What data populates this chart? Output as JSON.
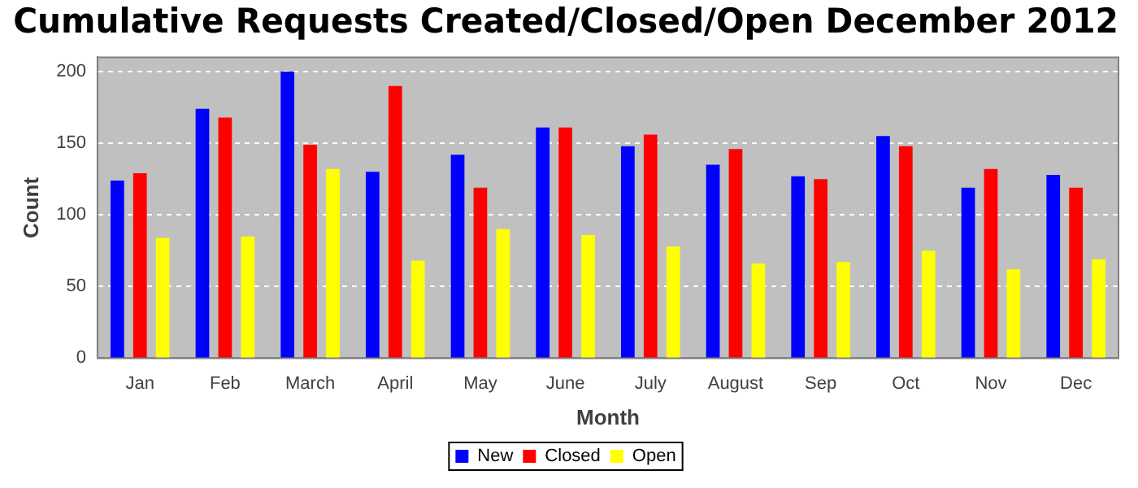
{
  "chart_data": {
    "type": "bar",
    "title": "Cumulative Requests Created/Closed/Open December 2012",
    "xlabel": "Month",
    "ylabel": "Count",
    "categories": [
      "Jan",
      "Feb",
      "March",
      "April",
      "May",
      "June",
      "July",
      "August",
      "Sep",
      "Oct",
      "Nov",
      "Dec"
    ],
    "series": [
      {
        "name": "New",
        "color": "#0000ff",
        "values": [
          124,
          174,
          200,
          130,
          142,
          161,
          148,
          135,
          127,
          155,
          119,
          128
        ]
      },
      {
        "name": "Closed",
        "color": "#ff0000",
        "values": [
          129,
          168,
          149,
          190,
          119,
          161,
          156,
          146,
          125,
          148,
          132,
          119
        ]
      },
      {
        "name": "Open",
        "color": "#ffff00",
        "values": [
          84,
          85,
          132,
          68,
          90,
          86,
          78,
          66,
          67,
          75,
          62,
          69
        ]
      }
    ],
    "ylim": [
      0,
      210
    ],
    "yticks": [
      0,
      50,
      100,
      150,
      200
    ],
    "grid": "y",
    "legend": "bottom"
  }
}
